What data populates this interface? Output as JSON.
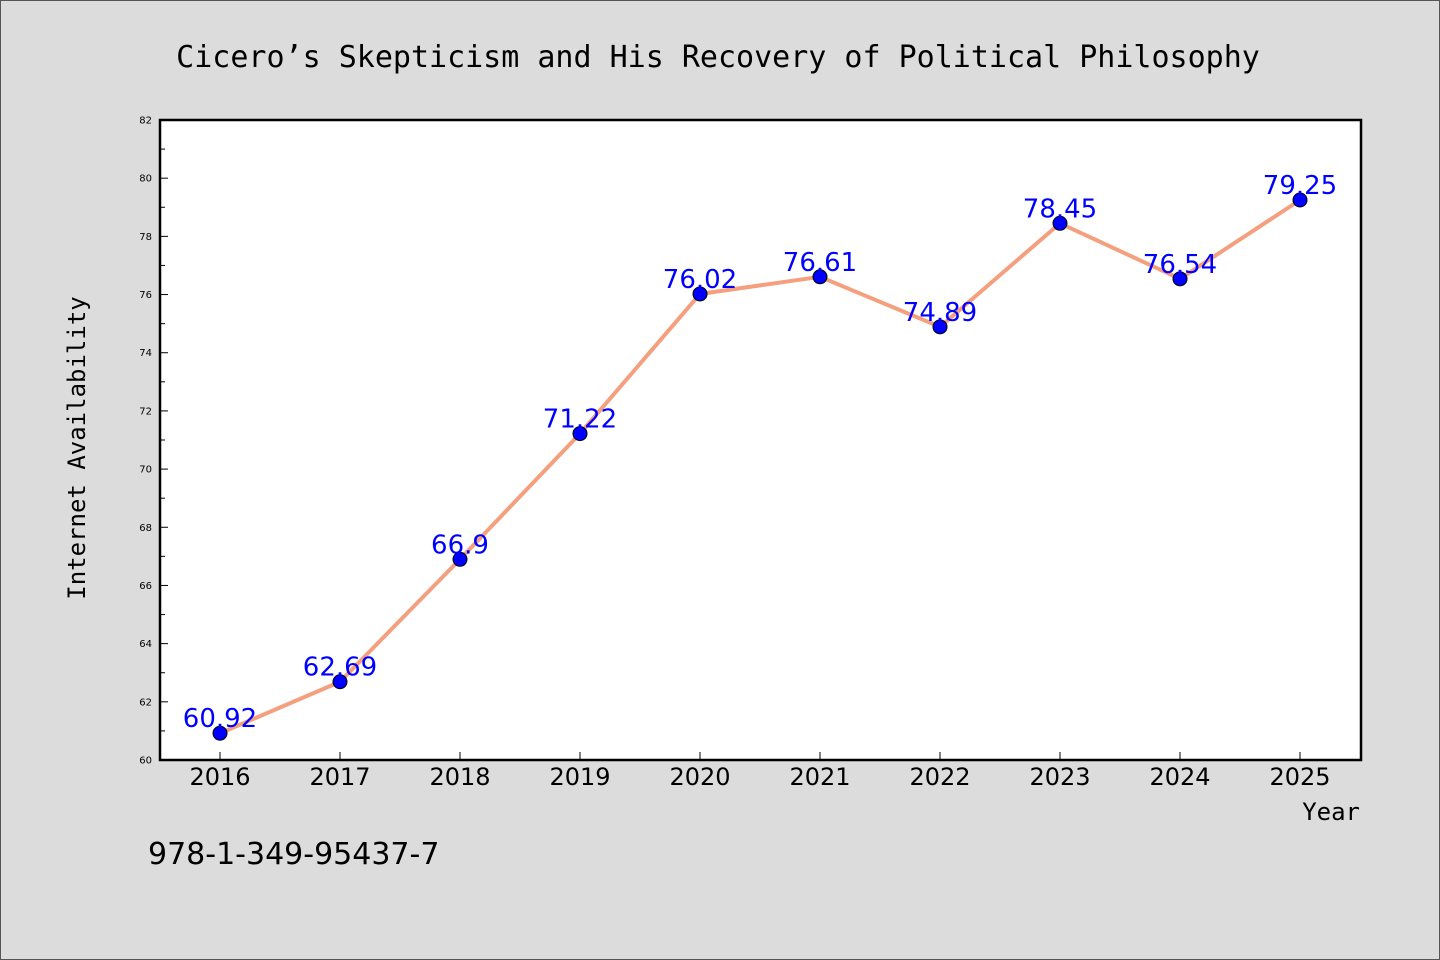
{
  "chart_data": {
    "type": "line",
    "title": "Cicero’s Skepticism and His Recovery of Political Philosophy",
    "xlabel": "Year",
    "ylabel": "Internet Availability",
    "categories": [
      "2016",
      "2017",
      "2018",
      "2019",
      "2020",
      "2021",
      "2022",
      "2023",
      "2024",
      "2025"
    ],
    "values": [
      60.92,
      62.69,
      66.9,
      71.22,
      76.02,
      76.61,
      74.89,
      78.45,
      76.54,
      79.25
    ],
    "data_labels": [
      "60.92",
      "62.69",
      "66.9",
      "71.22",
      "76.02",
      "76.61",
      "74.89",
      "78.45",
      "76.54",
      "79.25"
    ],
    "ylim": [
      60,
      82
    ],
    "yticks": [
      "60",
      "62",
      "64",
      "66",
      "68",
      "70",
      "72",
      "74",
      "76",
      "78",
      "80",
      "82"
    ],
    "grid": false,
    "legend": "none",
    "colors": {
      "line": "#f4a07f",
      "marker": "#0000ff",
      "data_label": "#0000ff",
      "background": "#dcdcdc",
      "plot_background": "#ffffff"
    }
  },
  "footer": {
    "isbn": "978-1-349-95437-7"
  }
}
